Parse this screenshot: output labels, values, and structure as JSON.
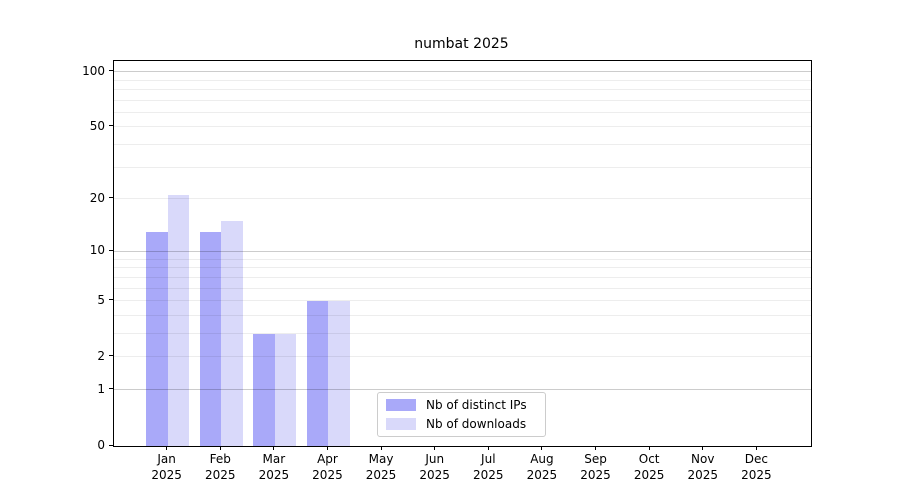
{
  "chart_data": {
    "type": "bar",
    "title": "numbat 2025",
    "categories": [
      "Jan",
      "Feb",
      "Mar",
      "Apr",
      "May",
      "Jun",
      "Jul",
      "Aug",
      "Sep",
      "Oct",
      "Nov",
      "Dec"
    ],
    "x_tick_second_line": "2025",
    "series": [
      {
        "name": "Nb of distinct IPs",
        "color": "#a9a9f9",
        "values": [
          13,
          13,
          3,
          5,
          0,
          0,
          0,
          0,
          0,
          0,
          0,
          0
        ]
      },
      {
        "name": "Nb of downloads",
        "color": "#d9d9fa",
        "values": [
          21,
          15,
          3,
          5,
          0,
          0,
          0,
          0,
          0,
          0,
          0,
          0
        ]
      }
    ],
    "yscale": "log1p",
    "yticks": [
      0,
      1,
      2,
      5,
      10,
      20,
      50,
      100
    ],
    "minor_gridline_values": [
      2,
      3,
      4,
      5,
      6,
      7,
      8,
      9,
      20,
      30,
      40,
      50,
      60,
      70,
      80,
      90
    ],
    "major_gridline_values": [
      1,
      10,
      100
    ],
    "ylim": [
      0,
      114
    ],
    "grid": "horizontal",
    "legend_position": "lower center"
  }
}
